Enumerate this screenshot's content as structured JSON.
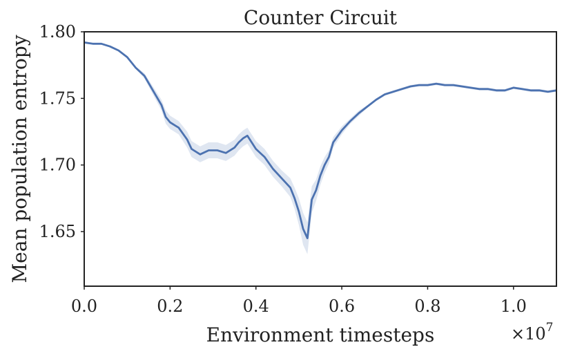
{
  "chart_data": {
    "type": "line",
    "title": "Counter Circuit",
    "xlabel": "Environment timesteps",
    "ylabel": "Mean population entropy",
    "x_offset_text": "×10",
    "x_offset_exponent": "7",
    "xlim": [
      0.0,
      1.1
    ],
    "ylim": [
      1.609,
      1.8
    ],
    "x_ticks": [
      0.0,
      0.2,
      0.4,
      0.6,
      0.8,
      1.0
    ],
    "x_tick_labels": [
      "0.0",
      "0.2",
      "0.4",
      "0.6",
      "0.8",
      "1.0"
    ],
    "y_ticks": [
      1.65,
      1.7,
      1.75,
      1.8
    ],
    "y_tick_labels": [
      "1.65",
      "1.70",
      "1.75",
      "1.80"
    ],
    "grid": false,
    "legend": "none",
    "colors": {
      "line": "#4c72b0",
      "band": "#4c72b0"
    },
    "series": [
      {
        "x": [
          0.0,
          0.02,
          0.04,
          0.06,
          0.08,
          0.1,
          0.12,
          0.14,
          0.16,
          0.18,
          0.19,
          0.2,
          0.22,
          0.24,
          0.25,
          0.27,
          0.29,
          0.31,
          0.33,
          0.35,
          0.36,
          0.37,
          0.38,
          0.4,
          0.42,
          0.44,
          0.46,
          0.48,
          0.49,
          0.5,
          0.51,
          0.52,
          0.53,
          0.54,
          0.55,
          0.56,
          0.57,
          0.58,
          0.6,
          0.62,
          0.64,
          0.66,
          0.68,
          0.7,
          0.72,
          0.74,
          0.76,
          0.78,
          0.8,
          0.82,
          0.84,
          0.86,
          0.88,
          0.9,
          0.92,
          0.94,
          0.96,
          0.98,
          1.0,
          1.02,
          1.04,
          1.06,
          1.08,
          1.1
        ],
        "y": [
          1.792,
          1.791,
          1.791,
          1.789,
          1.786,
          1.781,
          1.773,
          1.767,
          1.756,
          1.745,
          1.736,
          1.732,
          1.728,
          1.719,
          1.712,
          1.708,
          1.711,
          1.711,
          1.709,
          1.713,
          1.717,
          1.72,
          1.722,
          1.712,
          1.706,
          1.697,
          1.69,
          1.683,
          1.675,
          1.665,
          1.652,
          1.645,
          1.674,
          1.681,
          1.692,
          1.7,
          1.706,
          1.717,
          1.726,
          1.733,
          1.739,
          1.744,
          1.749,
          1.753,
          1.755,
          1.757,
          1.759,
          1.76,
          1.76,
          1.761,
          1.76,
          1.76,
          1.759,
          1.758,
          1.757,
          1.757,
          1.756,
          1.756,
          1.758,
          1.757,
          1.756,
          1.756,
          1.755,
          1.756
        ],
        "band": [
          0.0,
          0.0,
          0.0,
          0.0,
          0.0,
          0.001,
          0.001,
          0.002,
          0.003,
          0.004,
          0.005,
          0.005,
          0.005,
          0.006,
          0.006,
          0.006,
          0.006,
          0.006,
          0.006,
          0.006,
          0.006,
          0.006,
          0.006,
          0.006,
          0.006,
          0.006,
          0.006,
          0.007,
          0.008,
          0.01,
          0.012,
          0.012,
          0.01,
          0.008,
          0.007,
          0.006,
          0.005,
          0.004,
          0.003,
          0.002,
          0.002,
          0.001,
          0.001,
          0.001,
          0.001,
          0.001,
          0.001,
          0.001,
          0.001,
          0.001,
          0.001,
          0.001,
          0.001,
          0.001,
          0.001,
          0.001,
          0.001,
          0.001,
          0.001,
          0.001,
          0.001,
          0.001,
          0.001,
          0.001
        ]
      }
    ]
  }
}
